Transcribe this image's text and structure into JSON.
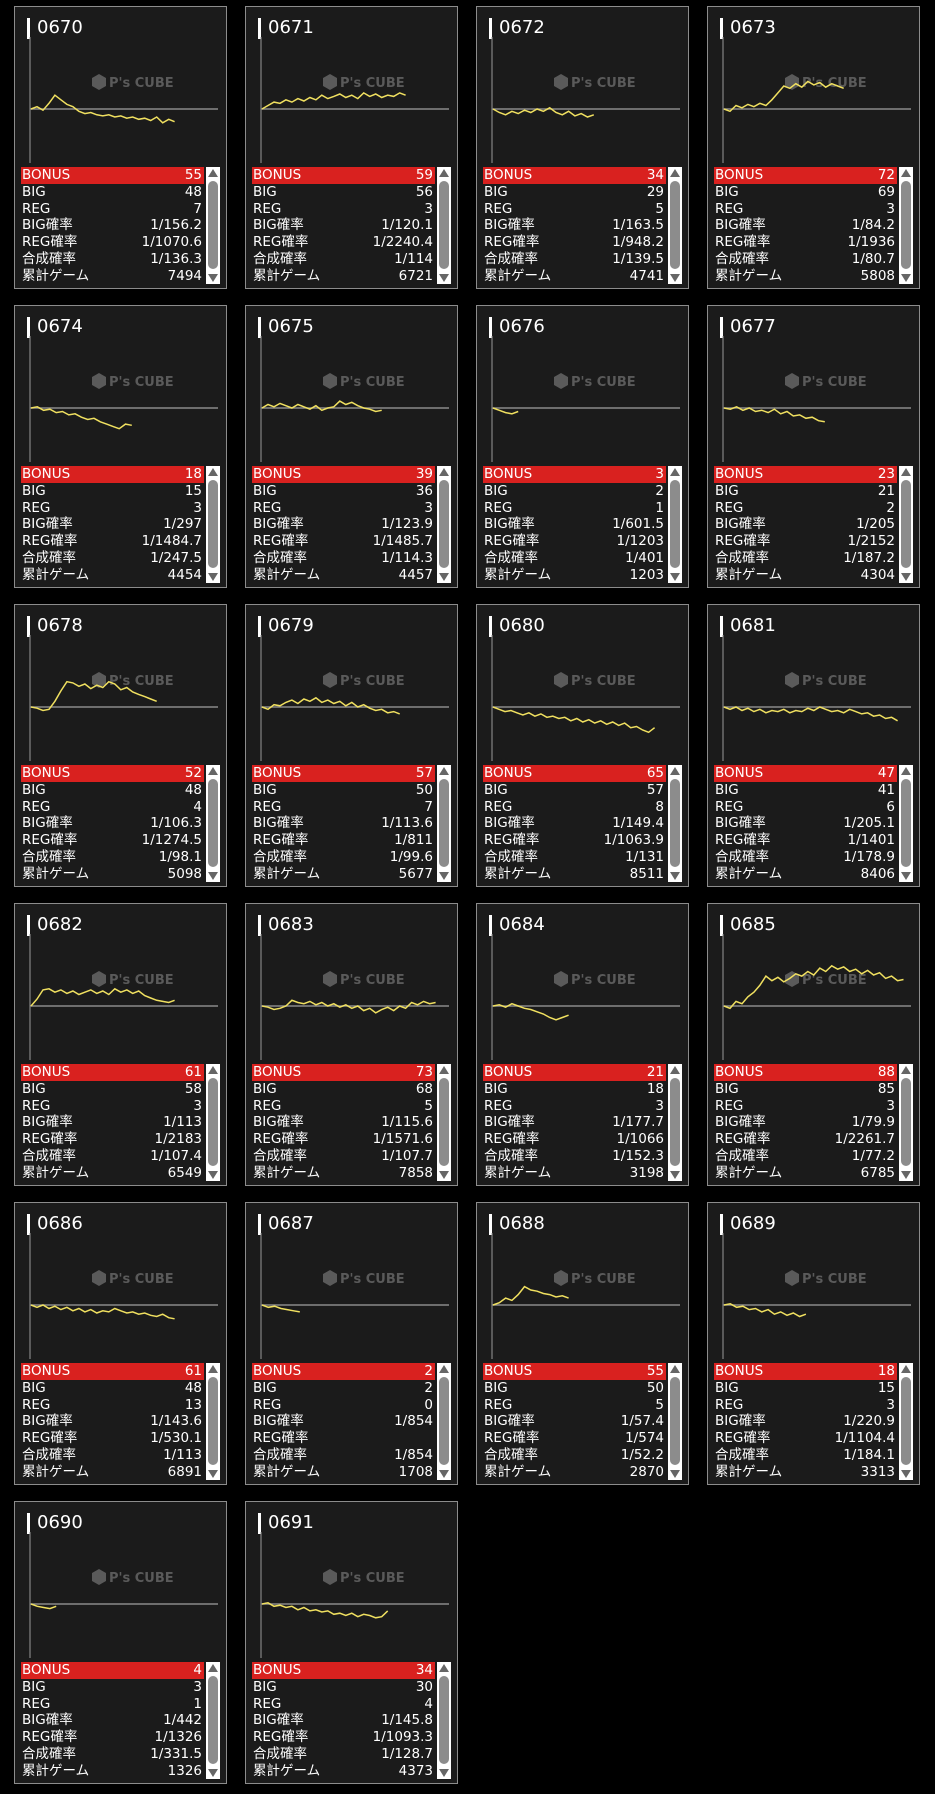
{
  "labels": {
    "bonus": "BONUS",
    "big": "BIG",
    "reg": "REG",
    "big_rate": "BIG確率",
    "reg_rate": "REG確率",
    "combined_rate": "合成確率",
    "total_games": "累計ゲーム"
  },
  "watermark": {
    "brand": "P's CUBE"
  },
  "colors": {
    "bonus_bar": "#d9211f",
    "graph_line": "#f0e060",
    "card_bg": "#1b1b1b",
    "border": "#8c8c8c"
  },
  "machines": [
    {
      "id": "0670",
      "bonus": "55",
      "big": "48",
      "reg": "7",
      "big_rate": "1/156.2",
      "reg_rate": "1/1070.6",
      "combined_rate": "1/136.3",
      "total_games": "7494",
      "graph": [
        0,
        2,
        -1,
        5,
        12,
        8,
        4,
        2,
        -2,
        -4,
        -3,
        -5,
        -6,
        -5,
        -7,
        -6,
        -8,
        -7,
        -9,
        -8,
        -10,
        -7,
        -12,
        -9,
        -11
      ]
    },
    {
      "id": "0671",
      "bonus": "59",
      "big": "56",
      "reg": "3",
      "big_rate": "1/120.1",
      "reg_rate": "1/2240.4",
      "combined_rate": "1/114",
      "total_games": "6721",
      "graph": [
        0,
        3,
        6,
        5,
        8,
        6,
        9,
        7,
        10,
        8,
        12,
        9,
        11,
        13,
        10,
        12,
        9,
        14,
        11,
        13,
        10,
        12,
        11,
        14,
        12
      ]
    },
    {
      "id": "0672",
      "bonus": "34",
      "big": "29",
      "reg": "5",
      "big_rate": "1/163.5",
      "reg_rate": "1/948.2",
      "combined_rate": "1/139.5",
      "total_games": "4741",
      "graph": [
        0,
        -3,
        -5,
        -2,
        -4,
        -1,
        -3,
        0,
        -2,
        1,
        -3,
        -5,
        -2,
        -6,
        -4,
        -7,
        -5
      ]
    },
    {
      "id": "0673",
      "bonus": "72",
      "big": "69",
      "reg": "3",
      "big_rate": "1/84.2",
      "reg_rate": "1/1936",
      "combined_rate": "1/80.7",
      "total_games": "5808",
      "graph": [
        0,
        -2,
        3,
        1,
        4,
        2,
        5,
        3,
        8,
        14,
        20,
        18,
        22,
        19,
        24,
        21,
        23,
        19,
        22,
        20,
        18
      ]
    },
    {
      "id": "0674",
      "bonus": "18",
      "big": "15",
      "reg": "3",
      "big_rate": "1/297",
      "reg_rate": "1/1484.7",
      "combined_rate": "1/247.5",
      "total_games": "4454",
      "graph": [
        0,
        1,
        -2,
        -1,
        -4,
        -3,
        -6,
        -5,
        -8,
        -10,
        -9,
        -12,
        -14,
        -16,
        -18,
        -14,
        -15
      ]
    },
    {
      "id": "0675",
      "bonus": "39",
      "big": "36",
      "reg": "3",
      "big_rate": "1/123.9",
      "reg_rate": "1/1485.7",
      "combined_rate": "1/114.3",
      "total_games": "4457",
      "graph": [
        0,
        3,
        1,
        4,
        2,
        0,
        3,
        1,
        -1,
        2,
        -2,
        0,
        1,
        6,
        3,
        5,
        2,
        0,
        -1,
        -3,
        -2
      ]
    },
    {
      "id": "0676",
      "bonus": "3",
      "big": "2",
      "reg": "1",
      "big_rate": "1/601.5",
      "reg_rate": "1/1203",
      "combined_rate": "1/401",
      "total_games": "1203",
      "graph": [
        0,
        -2,
        -4,
        -5,
        -3
      ]
    },
    {
      "id": "0677",
      "bonus": "23",
      "big": "21",
      "reg": "2",
      "big_rate": "1/205",
      "reg_rate": "1/2152",
      "combined_rate": "1/187.2",
      "total_games": "4304",
      "graph": [
        0,
        -1,
        1,
        -2,
        0,
        -3,
        -2,
        -4,
        -1,
        -5,
        -3,
        -7,
        -6,
        -9,
        -8,
        -11,
        -12
      ]
    },
    {
      "id": "0678",
      "bonus": "52",
      "big": "48",
      "reg": "4",
      "big_rate": "1/106.3",
      "reg_rate": "1/1274.5",
      "combined_rate": "1/98.1",
      "total_games": "5098",
      "graph": [
        0,
        -1,
        -3,
        -2,
        5,
        14,
        22,
        21,
        18,
        20,
        16,
        19,
        17,
        22,
        20,
        15,
        17,
        13,
        11,
        9,
        7,
        5
      ]
    },
    {
      "id": "0679",
      "bonus": "57",
      "big": "50",
      "reg": "7",
      "big_rate": "1/113.6",
      "reg_rate": "1/811",
      "combined_rate": "1/99.6",
      "total_games": "5677",
      "graph": [
        0,
        -2,
        2,
        1,
        4,
        6,
        3,
        7,
        5,
        8,
        4,
        6,
        3,
        5,
        1,
        4,
        0,
        2,
        -1,
        -3,
        -2,
        -5,
        -4,
        -6
      ]
    },
    {
      "id": "0680",
      "bonus": "65",
      "big": "57",
      "reg": "8",
      "big_rate": "1/149.4",
      "reg_rate": "1/1063.9",
      "combined_rate": "1/131",
      "total_games": "8511",
      "graph": [
        0,
        -2,
        -4,
        -3,
        -5,
        -7,
        -5,
        -8,
        -6,
        -9,
        -8,
        -10,
        -9,
        -12,
        -10,
        -13,
        -11,
        -14,
        -12,
        -15,
        -13,
        -16,
        -14,
        -18,
        -17,
        -20,
        -22,
        -18
      ]
    },
    {
      "id": "0681",
      "bonus": "47",
      "big": "41",
      "reg": "6",
      "big_rate": "1/205.1",
      "reg_rate": "1/1401",
      "combined_rate": "1/178.9",
      "total_games": "8406",
      "graph": [
        0,
        -2,
        0,
        -3,
        -1,
        -4,
        -2,
        -5,
        -3,
        -4,
        -2,
        -5,
        -3,
        -4,
        -1,
        -3,
        0,
        -2,
        -4,
        -3,
        -5,
        -2,
        -4,
        -6,
        -5,
        -8,
        -7,
        -10,
        -9,
        -12
      ]
    },
    {
      "id": "0682",
      "bonus": "61",
      "big": "58",
      "reg": "3",
      "big_rate": "1/113",
      "reg_rate": "1/2183",
      "combined_rate": "1/107.4",
      "total_games": "6549",
      "graph": [
        0,
        6,
        14,
        15,
        12,
        14,
        11,
        13,
        10,
        12,
        14,
        11,
        13,
        10,
        15,
        12,
        14,
        11,
        13,
        9,
        7,
        5,
        4,
        3,
        5
      ]
    },
    {
      "id": "0683",
      "bonus": "73",
      "big": "68",
      "reg": "5",
      "big_rate": "1/115.6",
      "reg_rate": "1/1571.6",
      "combined_rate": "1/107.7",
      "total_games": "7858",
      "graph": [
        0,
        -1,
        -3,
        -2,
        0,
        5,
        3,
        2,
        4,
        1,
        3,
        0,
        2,
        -1,
        1,
        -2,
        0,
        -4,
        -2,
        -6,
        -3,
        -1,
        -4,
        0,
        -2,
        3,
        1,
        4,
        2,
        3
      ]
    },
    {
      "id": "0684",
      "bonus": "21",
      "big": "18",
      "reg": "3",
      "big_rate": "1/177.7",
      "reg_rate": "1/1066",
      "combined_rate": "1/152.3",
      "total_games": "3198",
      "graph": [
        0,
        1,
        -1,
        2,
        0,
        -2,
        -3,
        -5,
        -7,
        -10,
        -12,
        -10,
        -8
      ]
    },
    {
      "id": "0685",
      "bonus": "88",
      "big": "85",
      "reg": "3",
      "big_rate": "1/79.9",
      "reg_rate": "1/2261.7",
      "combined_rate": "1/77.2",
      "total_games": "6785",
      "graph": [
        0,
        -2,
        4,
        2,
        8,
        12,
        18,
        26,
        22,
        25,
        21,
        24,
        28,
        26,
        30,
        27,
        33,
        30,
        35,
        32,
        34,
        30,
        32,
        28,
        31,
        27,
        29,
        24,
        26,
        22,
        23
      ]
    },
    {
      "id": "0686",
      "bonus": "61",
      "big": "48",
      "reg": "13",
      "big_rate": "1/143.6",
      "reg_rate": "1/530.1",
      "combined_rate": "1/113",
      "total_games": "6891",
      "graph": [
        0,
        -2,
        0,
        -3,
        -1,
        -4,
        -2,
        -5,
        -3,
        -6,
        -4,
        -7,
        -5,
        -6,
        -3,
        -5,
        -7,
        -6,
        -8,
        -7,
        -9,
        -10,
        -8,
        -11,
        -12
      ]
    },
    {
      "id": "0687",
      "bonus": "2",
      "big": "2",
      "reg": "0",
      "big_rate": "1/854",
      "reg_rate": "",
      "combined_rate": "1/854",
      "total_games": "1708",
      "graph": [
        0,
        -2,
        -1,
        -3,
        -4,
        -5,
        -6
      ]
    },
    {
      "id": "0688",
      "bonus": "55",
      "big": "50",
      "reg": "5",
      "big_rate": "1/57.4",
      "reg_rate": "1/574",
      "combined_rate": "1/52.2",
      "total_games": "2870",
      "graph": [
        0,
        2,
        6,
        4,
        9,
        16,
        13,
        12,
        10,
        9,
        7,
        8,
        6
      ]
    },
    {
      "id": "0689",
      "bonus": "18",
      "big": "15",
      "reg": "3",
      "big_rate": "1/220.9",
      "reg_rate": "1/1104.4",
      "combined_rate": "1/184.1",
      "total_games": "3313",
      "graph": [
        0,
        1,
        -2,
        -1,
        -4,
        -3,
        -6,
        -4,
        -8,
        -6,
        -9,
        -7,
        -10,
        -8
      ]
    },
    {
      "id": "0690",
      "bonus": "4",
      "big": "3",
      "reg": "1",
      "big_rate": "1/442",
      "reg_rate": "1/1326",
      "combined_rate": "1/331.5",
      "total_games": "1326",
      "graph": [
        0,
        -2,
        -3,
        -4,
        -2
      ]
    },
    {
      "id": "0691",
      "bonus": "34",
      "big": "30",
      "reg": "4",
      "big_rate": "1/145.8",
      "reg_rate": "1/1093.3",
      "combined_rate": "1/128.7",
      "total_games": "4373",
      "graph": [
        0,
        1,
        -2,
        -1,
        -3,
        -2,
        -5,
        -3,
        -6,
        -5,
        -7,
        -6,
        -9,
        -8,
        -10,
        -8,
        -11,
        -9,
        -10,
        -12,
        -11,
        -6
      ]
    }
  ]
}
